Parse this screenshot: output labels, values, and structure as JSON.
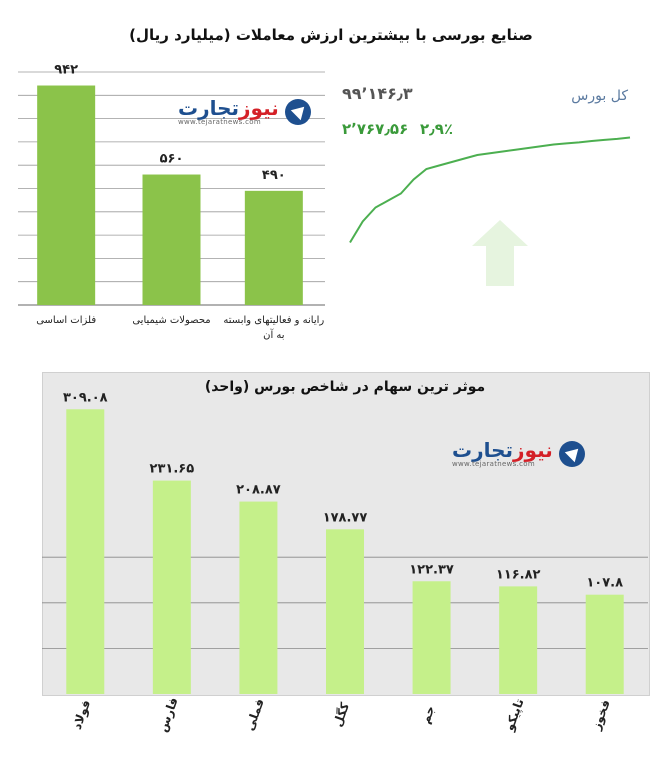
{
  "top_title": "صنایع بورسی با بیشترین ارزش معاملات (میلیارد ریال)",
  "index_panel": {
    "name": "کل بورس",
    "value": "۹۹٬۱۴۶٫۳",
    "change": "۲٬۷۶۷٫۵۶",
    "percent": "۲٫۹٪",
    "arrow_icon": "up-arrow-icon",
    "line_color": "#4caf50"
  },
  "logo": {
    "word_a": "نیوز",
    "word_b": "تجارت",
    "sub": "www.tejaratnews.com"
  },
  "colors": {
    "bar": "#8bc34a",
    "bar_light": "#c5f08a",
    "grid": "#999999",
    "index_line": "#4caf50",
    "frame": "#e8e8e8"
  },
  "chart_data": [
    {
      "type": "bar",
      "title": "صنایع بورسی با بیشترین ارزش معاملات (میلیارد ریال)",
      "categories": [
        "فلزات اساسی",
        "محصولات شیمیایی",
        "رایانه و فعالیتهای وابسته به آن"
      ],
      "category_lines": [
        [
          "فلزات اساسی"
        ],
        [
          "محصولات شیمیایی"
        ],
        [
          "رایانه و فعالیتهای وابسته",
          "به آن"
        ]
      ],
      "values": [
        942,
        560,
        490
      ],
      "value_labels": [
        "۹۴۲",
        "۵۶۰",
        "۴۹۰"
      ],
      "ylim": [
        0,
        1000
      ],
      "grid": true
    },
    {
      "type": "line",
      "series": [
        {
          "values": [
            60,
            66,
            70,
            72,
            74,
            78,
            81,
            82,
            83,
            84,
            85,
            85.5,
            86,
            86.5,
            87,
            87.5,
            88,
            88.3,
            88.6,
            89,
            89.3,
            89.6,
            90
          ]
        }
      ],
      "ylim": [
        55,
        95
      ]
    },
    {
      "type": "bar",
      "title": "موثر ترین سهام در شاخص بورس (واحد)",
      "categories": [
        "فولاد",
        "فارس",
        "فملی",
        "کگل",
        "جم",
        "تاپیکو",
        "فخوز"
      ],
      "values": [
        309.08,
        231.65,
        208.87,
        178.77,
        122.37,
        116.82,
        107.8
      ],
      "value_labels": [
        "۳۰۹.۰۸",
        "۲۳۱.۶۵",
        "۲۰۸.۸۷",
        "۱۷۸.۷۷",
        "۱۲۲.۳۷",
        "۱۱۶.۸۲",
        "۱۰۷.۸"
      ],
      "ylim": [
        0,
        330
      ],
      "grid": true
    }
  ]
}
